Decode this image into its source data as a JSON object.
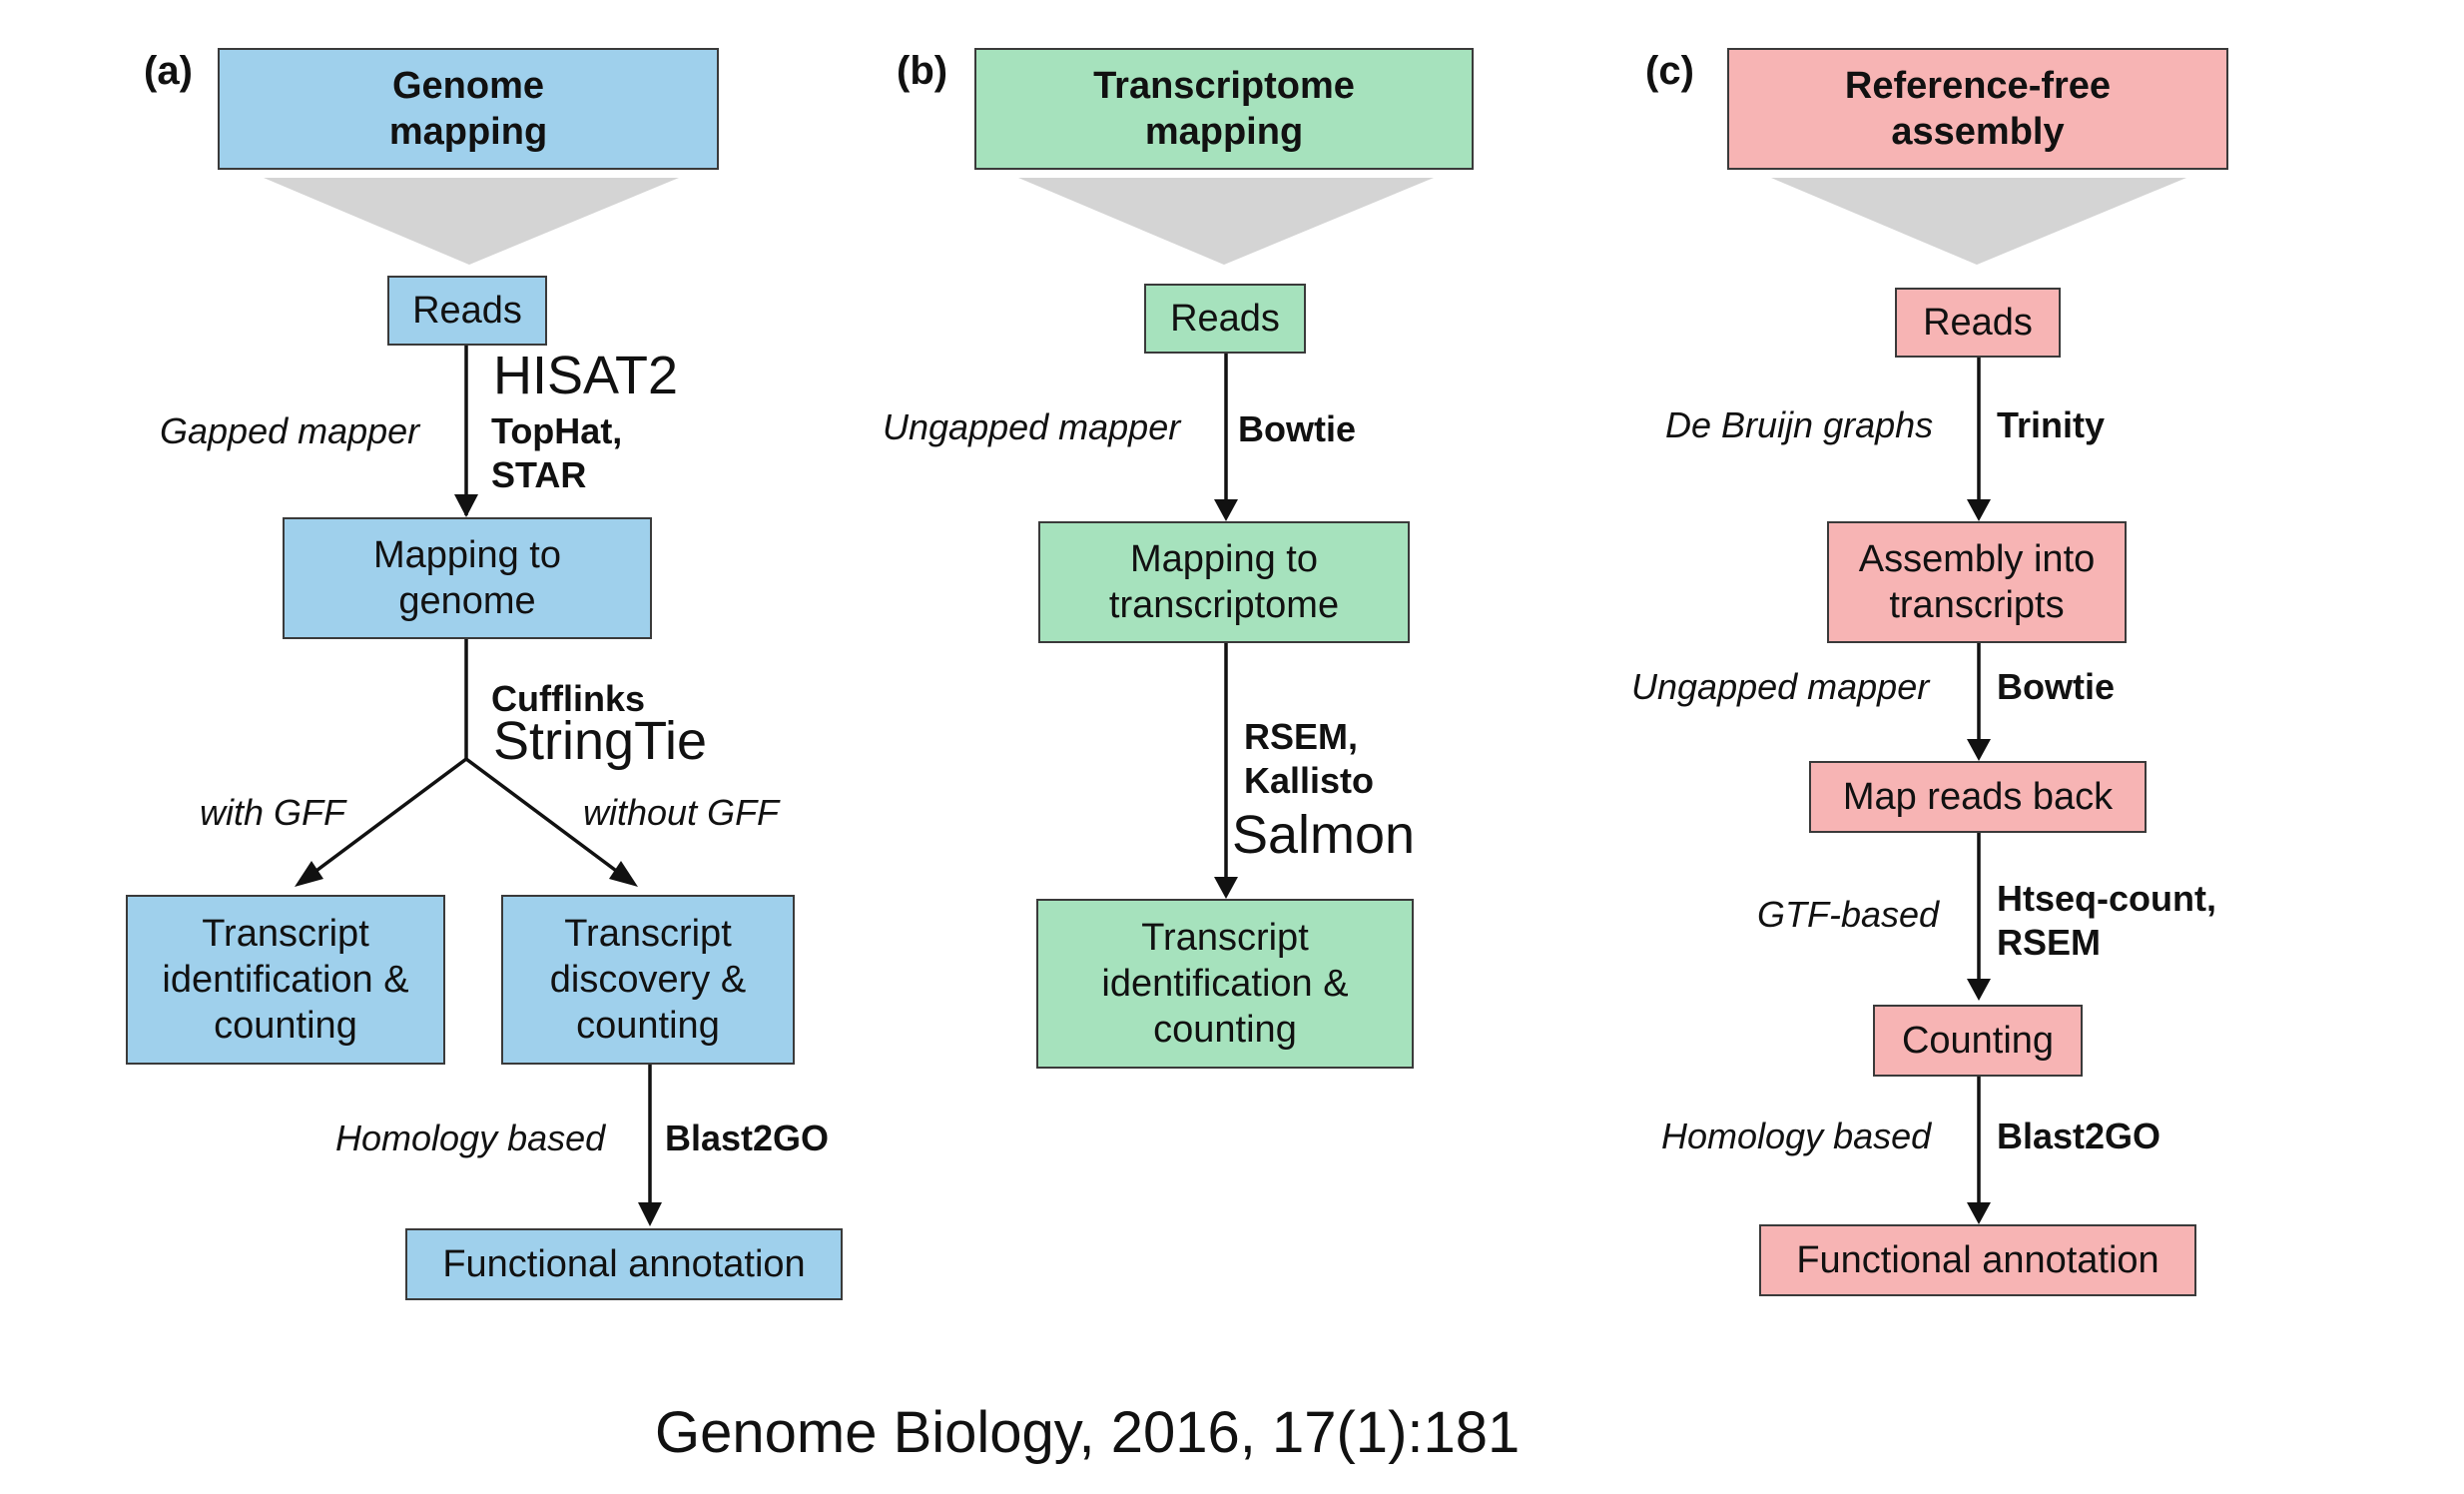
{
  "colors": {
    "genome": "#9fd0ec",
    "transcriptome": "#a6e2bd",
    "reference_free": "#f7b4b4",
    "funnel": "#d4d4d4",
    "border": "#3a3a3a"
  },
  "panel_a": {
    "label": "(a)",
    "header": "Genome\nmapping",
    "reads": "Reads",
    "gapped_mapper": "Gapped mapper",
    "hisat2": "HISAT2",
    "tophat_star": "TopHat,\nSTAR",
    "mapping_genome": "Mapping to\ngenome",
    "cufflinks": "Cufflinks",
    "stringtie": "StringTie",
    "with_gff": "with GFF",
    "without_gff": "without GFF",
    "transcript_identification": "Transcript\nidentification &\ncounting",
    "transcript_discovery": "Transcript\ndiscovery &\ncounting",
    "homology_based": "Homology based",
    "blast2go": "Blast2GO",
    "functional_annotation": "Functional annotation"
  },
  "panel_b": {
    "label": "(b)",
    "header": "Transcriptome\nmapping",
    "reads": "Reads",
    "ungapped_mapper": "Ungapped mapper",
    "bowtie": "Bowtie",
    "mapping_transcriptome": "Mapping to\ntranscriptome",
    "rsem_kallisto": "RSEM,\nKallisto",
    "salmon": "Salmon",
    "transcript_identification": "Transcript\nidentification &\ncounting"
  },
  "panel_c": {
    "label": "(c)",
    "header": "Reference-free\nassembly",
    "reads": "Reads",
    "de_bruijn": "De Bruijn graphs",
    "trinity": "Trinity",
    "assembly": "Assembly into\ntranscripts",
    "ungapped_mapper": "Ungapped mapper",
    "bowtie": "Bowtie",
    "map_reads_back": "Map reads back",
    "gtf_based": "GTF-based",
    "htseq_rsem": "Htseq-count,\nRSEM",
    "counting": "Counting",
    "homology_based": "Homology based",
    "blast2go": "Blast2GO",
    "functional_annotation": "Functional annotation"
  },
  "citation": "Genome Biology, 2016, 17(1):181"
}
